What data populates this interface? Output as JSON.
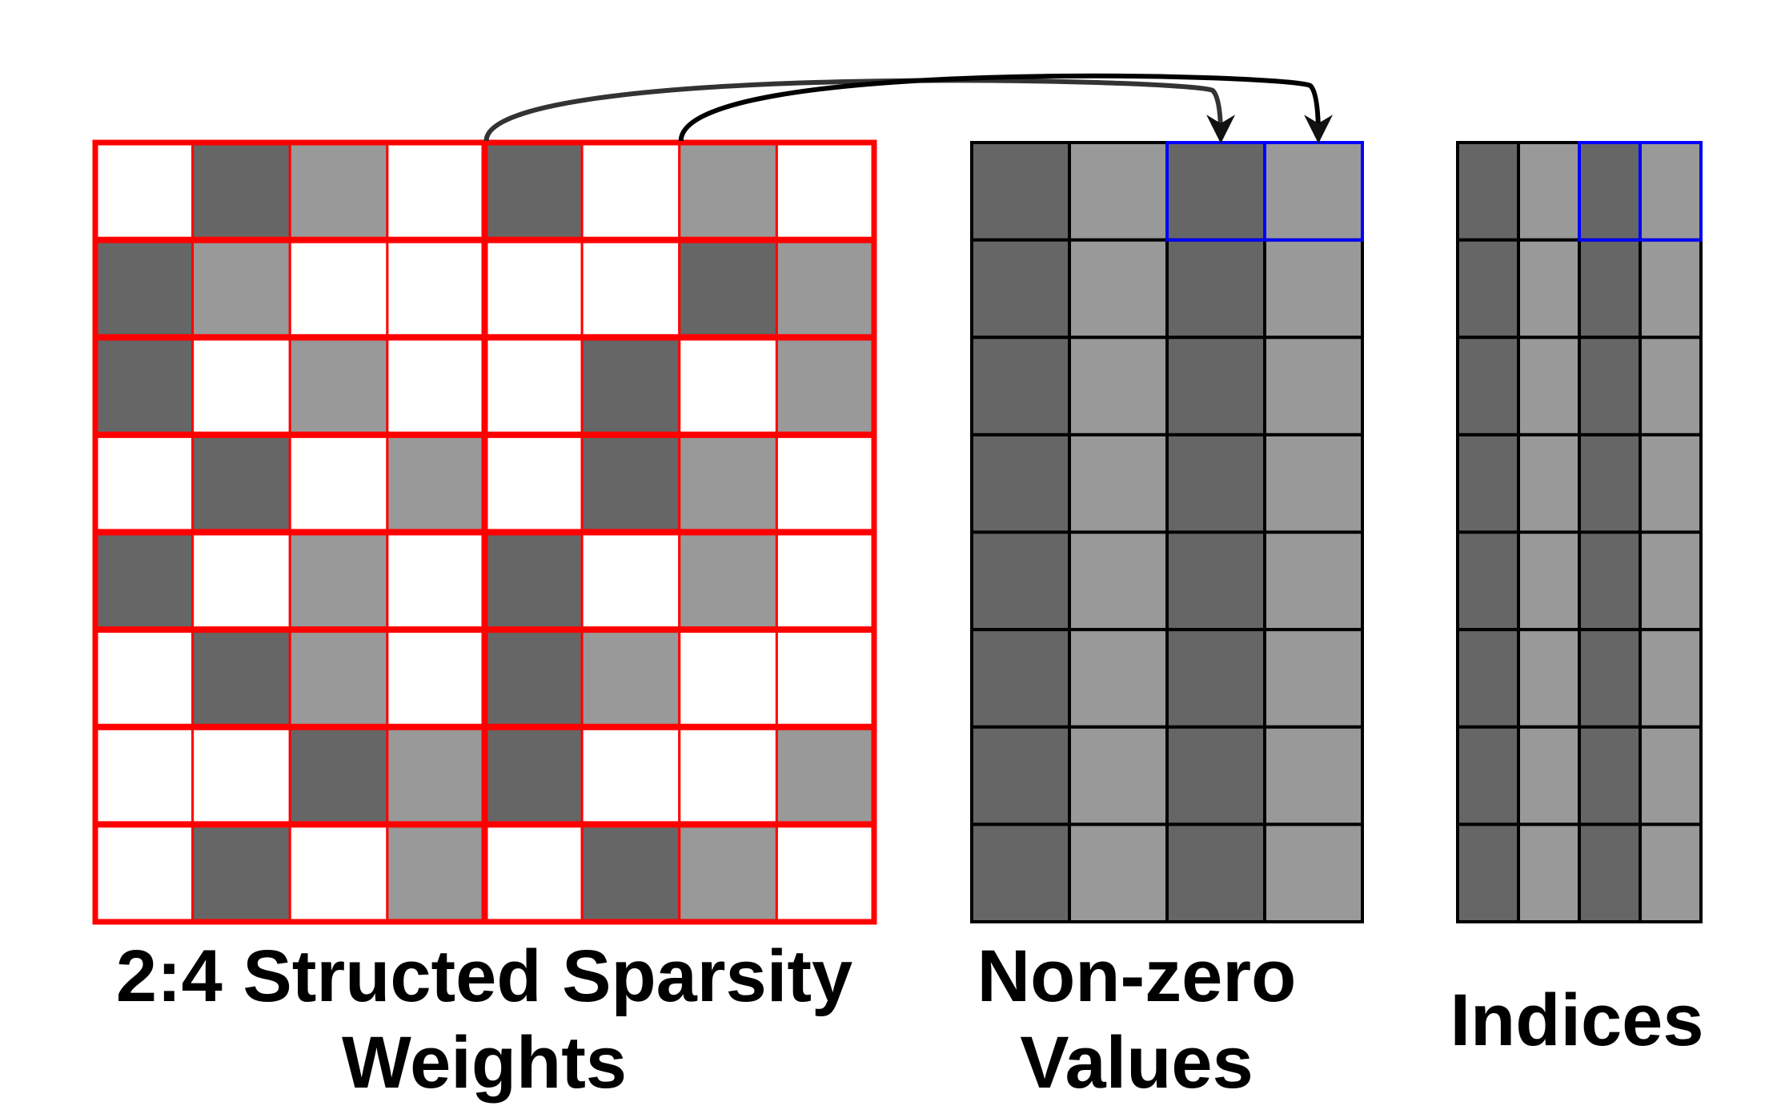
{
  "colors": {
    "empty": "#ffffff",
    "dark": "#666666",
    "light": "#999999",
    "weights_grid": "#ff0000",
    "compressed_grid": "#000000",
    "highlight": "#0000ff",
    "arrow": "#333333"
  },
  "weights": {
    "caption_line1": "2:4 Structed Sparsity",
    "caption_line2": "Weights",
    "group_size": 4,
    "cells": [
      [
        "empty",
        "dark",
        "light",
        "empty",
        "dark",
        "empty",
        "light",
        "empty"
      ],
      [
        "dark",
        "light",
        "empty",
        "empty",
        "empty",
        "empty",
        "dark",
        "light"
      ],
      [
        "dark",
        "empty",
        "light",
        "empty",
        "empty",
        "dark",
        "empty",
        "light"
      ],
      [
        "empty",
        "dark",
        "empty",
        "light",
        "empty",
        "dark",
        "light",
        "empty"
      ],
      [
        "dark",
        "empty",
        "light",
        "empty",
        "dark",
        "empty",
        "light",
        "empty"
      ],
      [
        "empty",
        "dark",
        "light",
        "empty",
        "dark",
        "light",
        "empty",
        "empty"
      ],
      [
        "empty",
        "empty",
        "dark",
        "light",
        "dark",
        "empty",
        "empty",
        "light"
      ],
      [
        "empty",
        "dark",
        "empty",
        "light",
        "empty",
        "dark",
        "light",
        "empty"
      ]
    ]
  },
  "nonzero_values": {
    "caption_line1": "Non-zero",
    "caption_line2": "Values",
    "cells": [
      [
        "dark",
        "light",
        "dark",
        "light"
      ],
      [
        "dark",
        "light",
        "dark",
        "light"
      ],
      [
        "dark",
        "light",
        "dark",
        "light"
      ],
      [
        "dark",
        "light",
        "dark",
        "light"
      ],
      [
        "dark",
        "light",
        "dark",
        "light"
      ],
      [
        "dark",
        "light",
        "dark",
        "light"
      ],
      [
        "dark",
        "light",
        "dark",
        "light"
      ],
      [
        "dark",
        "light",
        "dark",
        "light"
      ]
    ],
    "highlight_cells": [
      [
        0,
        2
      ],
      [
        0,
        3
      ]
    ]
  },
  "indices": {
    "caption": "Indices",
    "cells": [
      [
        "dark",
        "light",
        "dark",
        "light"
      ],
      [
        "dark",
        "light",
        "dark",
        "light"
      ],
      [
        "dark",
        "light",
        "dark",
        "light"
      ],
      [
        "dark",
        "light",
        "dark",
        "light"
      ],
      [
        "dark",
        "light",
        "dark",
        "light"
      ],
      [
        "dark",
        "light",
        "dark",
        "light"
      ],
      [
        "dark",
        "light",
        "dark",
        "light"
      ],
      [
        "dark",
        "light",
        "dark",
        "light"
      ]
    ],
    "highlight_cells": [
      [
        0,
        2
      ],
      [
        0,
        3
      ]
    ]
  },
  "arrows": [
    {
      "from": "weights-cell-r0-c4",
      "to": "nonzero-cell-r0-c2"
    },
    {
      "from": "weights-cell-r0-c6",
      "to": "nonzero-cell-r0-c3"
    }
  ]
}
